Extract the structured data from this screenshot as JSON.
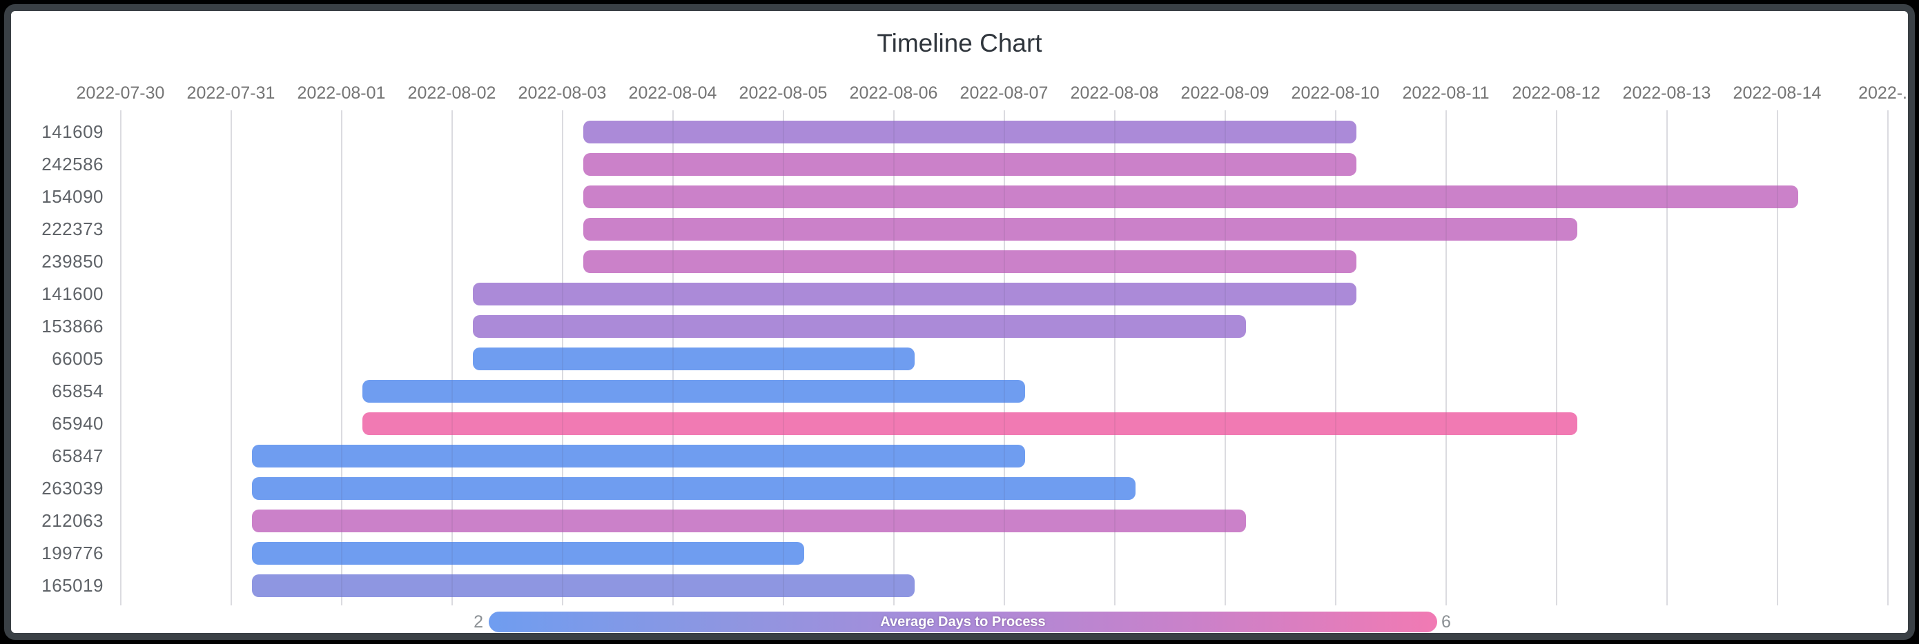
{
  "page": {
    "background": "#000000",
    "card_background": "#ffffff",
    "card_border_color": "#3a4045"
  },
  "chart_data": {
    "type": "bar",
    "variant": "timeline-gantt",
    "title": "Timeline Chart",
    "grid": true,
    "x_axis": {
      "start": "2022-07-30",
      "tick_interval_days": 1,
      "ticks": [
        {
          "label": "2022-07-30",
          "date": "2022-07-30"
        },
        {
          "label": "2022-07-31",
          "date": "2022-07-31"
        },
        {
          "label": "2022-08-01",
          "date": "2022-08-01"
        },
        {
          "label": "2022-08-02",
          "date": "2022-08-02"
        },
        {
          "label": "2022-08-03",
          "date": "2022-08-03"
        },
        {
          "label": "2022-08-04",
          "date": "2022-08-04"
        },
        {
          "label": "2022-08-05",
          "date": "2022-08-05"
        },
        {
          "label": "2022-08-06",
          "date": "2022-08-06"
        },
        {
          "label": "2022-08-07",
          "date": "2022-08-07"
        },
        {
          "label": "2022-08-08",
          "date": "2022-08-08"
        },
        {
          "label": "2022-08-09",
          "date": "2022-08-09"
        },
        {
          "label": "2022-08-10",
          "date": "2022-08-10"
        },
        {
          "label": "2022-08-11",
          "date": "2022-08-11"
        },
        {
          "label": "2022-08-12",
          "date": "2022-08-12"
        },
        {
          "label": "2022-08-13",
          "date": "2022-08-13"
        },
        {
          "label": "2022-08-14",
          "date": "2022-08-14"
        },
        {
          "label": "2022-...",
          "date": "2022-08-15"
        }
      ]
    },
    "rows": [
      {
        "id": "141609",
        "start": "2022-08-03",
        "end": "2022-08-10",
        "duration_days": 7,
        "avg_days": 4,
        "color": "#ab8ad8"
      },
      {
        "id": "242586",
        "start": "2022-08-03",
        "end": "2022-08-10",
        "duration_days": 7,
        "avg_days": 5,
        "color": "#cb81c9"
      },
      {
        "id": "154090",
        "start": "2022-08-03",
        "end": "2022-08-14",
        "duration_days": 11,
        "avg_days": 5,
        "color": "#cb81c9"
      },
      {
        "id": "222373",
        "start": "2022-08-03",
        "end": "2022-08-12",
        "duration_days": 9,
        "avg_days": 5,
        "color": "#cb81c9"
      },
      {
        "id": "239850",
        "start": "2022-08-03",
        "end": "2022-08-10",
        "duration_days": 7,
        "avg_days": 5,
        "color": "#cb81c9"
      },
      {
        "id": "141600",
        "start": "2022-08-02",
        "end": "2022-08-10",
        "duration_days": 8,
        "avg_days": 4,
        "color": "#ab8ad8"
      },
      {
        "id": "153866",
        "start": "2022-08-02",
        "end": "2022-08-09",
        "duration_days": 7,
        "avg_days": 4,
        "color": "#ab8ad8"
      },
      {
        "id": "66005",
        "start": "2022-08-02",
        "end": "2022-08-06",
        "duration_days": 4,
        "avg_days": 2,
        "color": "#6f9df0"
      },
      {
        "id": "65854",
        "start": "2022-08-01",
        "end": "2022-08-07",
        "duration_days": 6,
        "avg_days": 2,
        "color": "#6f9df0"
      },
      {
        "id": "65940",
        "start": "2022-08-01",
        "end": "2022-08-12",
        "duration_days": 11,
        "avg_days": 6,
        "color": "#f17ab3"
      },
      {
        "id": "65847",
        "start": "2022-07-31",
        "end": "2022-08-07",
        "duration_days": 7,
        "avg_days": 2,
        "color": "#6f9df0"
      },
      {
        "id": "263039",
        "start": "2022-07-31",
        "end": "2022-08-08",
        "duration_days": 8,
        "avg_days": 2,
        "color": "#6f9df0"
      },
      {
        "id": "212063",
        "start": "2022-07-31",
        "end": "2022-08-09",
        "duration_days": 9,
        "avg_days": 5,
        "color": "#cb81c9"
      },
      {
        "id": "199776",
        "start": "2022-07-31",
        "end": "2022-08-05",
        "duration_days": 5,
        "avg_days": 2,
        "color": "#6f9df0"
      },
      {
        "id": "165019",
        "start": "2022-07-31",
        "end": "2022-08-06",
        "duration_days": 6,
        "avg_days": 3,
        "color": "#8e96e1"
      }
    ],
    "legend": {
      "title": "Average Days to Process",
      "min": "2",
      "max": "6",
      "gradient": [
        "#6f9df0",
        "#8e96e1",
        "#ab8ad8",
        "#cb81c9",
        "#f17ab3"
      ],
      "position": "bottom"
    }
  }
}
